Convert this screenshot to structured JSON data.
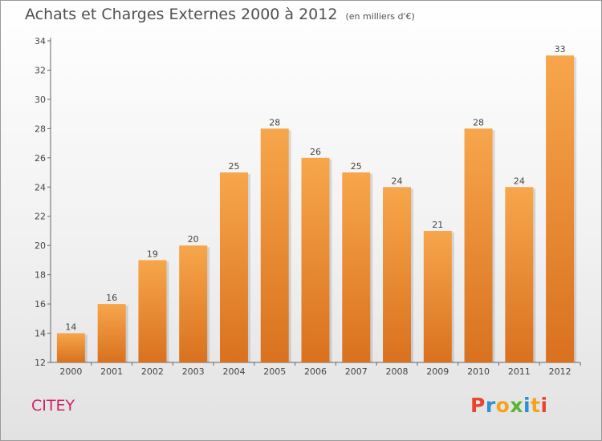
{
  "header": {
    "title": "Achats et Charges Externes 2000 à 2012",
    "unit": "(en milliers d'€)"
  },
  "footer": {
    "city": "CITEY",
    "brand_letters": [
      "P",
      "r",
      "o",
      "x",
      "i",
      "t",
      "i"
    ],
    "brand_colors": [
      "#e8452c",
      "#2e8fd6",
      "#f7a21b",
      "#5bb531",
      "#2e8fd6",
      "#f7a21b",
      "#e8452c"
    ]
  },
  "colors": {
    "bar_top": "#f7a64c",
    "bar_bottom": "#d9711f",
    "city": "#d3216b"
  },
  "chart_data": {
    "type": "bar",
    "title": "Achats et Charges Externes 2000 à 2012",
    "subtitle": "(en milliers d'€)",
    "categories": [
      "2000",
      "2001",
      "2002",
      "2003",
      "2004",
      "2005",
      "2006",
      "2007",
      "2008",
      "2009",
      "2010",
      "2011",
      "2012"
    ],
    "values": [
      14,
      16,
      19,
      20,
      25,
      28,
      26,
      25,
      24,
      21,
      28,
      24,
      33
    ],
    "ylim": [
      12,
      34
    ],
    "yticks": [
      12,
      14,
      16,
      18,
      20,
      22,
      24,
      26,
      28,
      30,
      32,
      34
    ],
    "grid": false,
    "xlabel": "",
    "ylabel": ""
  }
}
